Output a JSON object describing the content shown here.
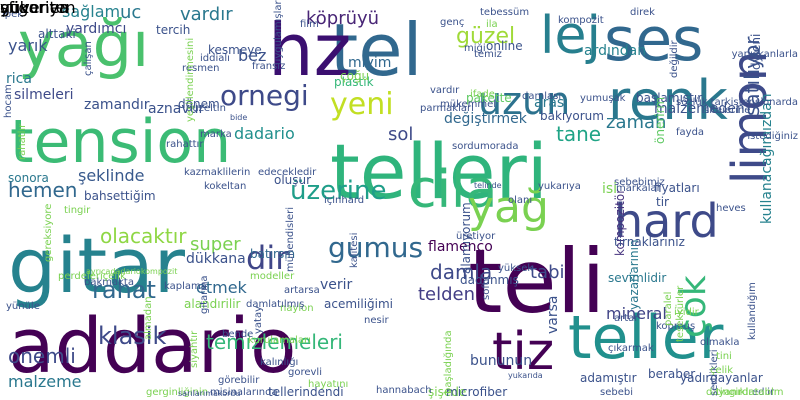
{
  "cloud": {
    "words": [
      {
        "text": "addario",
        "color": "#440154"
      },
      {
        "text": "tension",
        "color": "#3bbb75"
      },
      {
        "text": "teli",
        "color": "#440154"
      },
      {
        "text": "telleri",
        "color": "#2fb47c"
      },
      {
        "text": "tel",
        "color": "#31688e"
      },
      {
        "text": "hz",
        "color": "#3b0f70"
      },
      {
        "text": "gitar",
        "color": "#26828e"
      },
      {
        "text": "yağı",
        "color": "#4ac16d"
      },
      {
        "text": "ses",
        "color": "#31688e"
      },
      {
        "text": "lej",
        "color": "#277f8e"
      },
      {
        "text": "renk",
        "color": "#2a788e"
      },
      {
        "text": "teller",
        "color": "#21908d"
      },
      {
        "text": "cila",
        "color": "#35b779"
      },
      {
        "text": "tiz",
        "color": "#440154"
      },
      {
        "text": "limon",
        "color": "#3e4a89"
      },
      {
        "text": "hard",
        "color": "#3e4a89"
      },
      {
        "text": "yağ",
        "color": "#7ad151"
      },
      {
        "text": "gumus",
        "color": "#31688e"
      },
      {
        "text": "uzun",
        "color": "#2c728e"
      },
      {
        "text": "yeni",
        "color": "#c2df23"
      },
      {
        "text": "çok",
        "color": "#35b779"
      },
      {
        "text": "üzerine",
        "color": "#1f9e89"
      },
      {
        "text": "klasik",
        "color": "#3e4a89"
      },
      {
        "text": "ornegi",
        "color": "#3e4a89"
      },
      {
        "text": "dir",
        "color": "#404688"
      },
      {
        "text": "satılıyor",
        "color": "#3b528b"
      },
      {
        "text": "zaman",
        "color": "#2a788e"
      },
      {
        "text": "temizlemeleri",
        "color": "#35b779"
      },
      {
        "text": "damla",
        "color": "#3e4a89"
      },
      {
        "text": "telden",
        "color": "#433e85"
      },
      {
        "text": "tane",
        "color": "#20a486"
      },
      {
        "text": "olacaktır",
        "color": "#8fd744"
      },
      {
        "text": "rahat",
        "color": "#31688e"
      },
      {
        "text": "hemen",
        "color": "#31688e"
      },
      {
        "text": "tabi",
        "color": "#3e4a89"
      },
      {
        "text": "sol",
        "color": "#3e4a89"
      },
      {
        "text": "güzel",
        "color": "#a0da39"
      },
      {
        "text": "köprüyü",
        "color": "#482576"
      },
      {
        "text": "vardır",
        "color": "#2a788e"
      },
      {
        "text": "uc",
        "color": "#2a788e"
      },
      {
        "text": "bez",
        "color": "#3b528b"
      },
      {
        "text": "yarık",
        "color": "#3b528b"
      },
      {
        "text": "sağlam",
        "color": "#26828e"
      },
      {
        "text": "yardımcı",
        "color": "#3e4a89"
      },
      {
        "text": "ardından",
        "color": "#26828e"
      },
      {
        "text": "kompozitör",
        "color": "#46327e"
      },
      {
        "text": "kullanacağımızdan",
        "color": "#26828e"
      },
      {
        "text": "yazarlarının",
        "color": "#2a788e"
      },
      {
        "text": "mineral",
        "color": "#414487"
      },
      {
        "text": "varsa",
        "color": "#3b528b"
      },
      {
        "text": "bununun",
        "color": "#3b528b"
      },
      {
        "text": "onemli",
        "color": "#3e4a89"
      },
      {
        "text": "malzeme",
        "color": "#2a788e"
      },
      {
        "text": "super",
        "color": "#7ad151"
      },
      {
        "text": "dükkana",
        "color": "#3b528b"
      },
      {
        "text": "etmek",
        "color": "#31688e"
      },
      {
        "text": "flamenco",
        "color": "#440154"
      },
      {
        "text": "değiştirmek",
        "color": "#31688e"
      },
      {
        "text": "malzemeden",
        "color": "#3b528b"
      },
      {
        "text": "dadario",
        "color": "#21908d"
      },
      {
        "text": "zamandır",
        "color": "#3b528b"
      },
      {
        "text": "aznavur",
        "color": "#3b528b"
      },
      {
        "text": "şeklinde",
        "color": "#38598c"
      },
      {
        "text": "oluşur",
        "color": "#3b528b"
      },
      {
        "text": "miyim",
        "color": "#31688e"
      },
      {
        "text": "plastik",
        "color": "#35b779"
      },
      {
        "text": "silmeleri",
        "color": "#3e4a89"
      },
      {
        "text": "rica",
        "color": "#2a788e"
      },
      {
        "text": "sonora",
        "color": "#2a788e"
      },
      {
        "text": "başlamıştır",
        "color": "#3b528b"
      },
      {
        "text": "dadanmış",
        "color": "#3b528b"
      },
      {
        "text": "verir",
        "color": "#3b528b"
      },
      {
        "text": "tirnaklarınız",
        "color": "#3b528b"
      },
      {
        "text": "sevimlidir",
        "color": "#2a788e"
      },
      {
        "text": "alamıyorum",
        "color": "#3b528b"
      },
      {
        "text": "adamıştır",
        "color": "#3b528b"
      },
      {
        "text": "beraber",
        "color": "#3b528b"
      },
      {
        "text": "yadırgayanlar",
        "color": "#3b528b"
      },
      {
        "text": "tellerindendi",
        "color": "#3b528b"
      },
      {
        "text": "bahsettiğim",
        "color": "#3b528b"
      },
      {
        "text": "alandırilir",
        "color": "#7ad151"
      },
      {
        "text": "batırsın",
        "color": "#31688e"
      },
      {
        "text": "online",
        "color": "#3b528b"
      },
      {
        "text": "arası",
        "color": "#2a788e"
      },
      {
        "text": "bakıyorum",
        "color": "#3b528b"
      },
      {
        "text": "pakette",
        "color": "#5ec962"
      },
      {
        "text": "dönem",
        "color": "#3b528b"
      },
      {
        "text": "kesmeye",
        "color": "#3b528b"
      },
      {
        "text": "tercih",
        "color": "#3b528b"
      },
      {
        "text": "alttaki",
        "color": "#3b528b"
      },
      {
        "text": "hocam",
        "color": "#3b528b"
      },
      {
        "text": "çoğu",
        "color": "#7ad151"
      },
      {
        "text": "fransız",
        "color": "#3b528b"
      },
      {
        "text": "resmen",
        "color": "#3b528b"
      },
      {
        "text": "iddialı",
        "color": "#3b528b"
      },
      {
        "text": "kazmaklilerin",
        "color": "#3b528b"
      },
      {
        "text": "edecekledir",
        "color": "#3b528b"
      },
      {
        "text": "sebebimiz",
        "color": "#3b528b"
      },
      {
        "text": "önerirm",
        "color": "#5ec962"
      },
      {
        "text": "fiyatları",
        "color": "#3b528b"
      },
      {
        "text": "tir",
        "color": "#3b528b"
      },
      {
        "text": "isi",
        "color": "#7ad151"
      },
      {
        "text": "markalar",
        "color": "#3b528b"
      },
      {
        "text": "yukarıya",
        "color": "#3b528b"
      },
      {
        "text": "telinde",
        "color": "#3b528b"
      },
      {
        "text": "sordumorada",
        "color": "#3b528b"
      },
      {
        "text": "mükemmel",
        "color": "#3b528b"
      },
      {
        "text": "parmaklari",
        "color": "#3b528b"
      },
      {
        "text": "kaplama",
        "color": "#3b528b"
      },
      {
        "text": "yüksek",
        "color": "#3b528b"
      },
      {
        "text": "artarsa",
        "color": "#3b528b"
      },
      {
        "text": "naylon",
        "color": "#7ad151"
      },
      {
        "text": "acemiliğimi",
        "color": "#3b528b"
      },
      {
        "text": "üretiyor",
        "color": "#3b528b"
      },
      {
        "text": "soft",
        "color": "#3b528b"
      },
      {
        "text": "nesir",
        "color": "#3b528b"
      },
      {
        "text": "çıkarmak",
        "color": "#3b528b"
      },
      {
        "text": "artar",
        "color": "#3b528b"
      },
      {
        "text": "olmakla",
        "color": "#3b528b"
      },
      {
        "text": "gorevli",
        "color": "#3b528b"
      },
      {
        "text": "hayatını",
        "color": "#7ad151"
      },
      {
        "text": "şişede",
        "color": "#7ad151"
      },
      {
        "text": "microfiber",
        "color": "#3b528b"
      },
      {
        "text": "hannabach",
        "color": "#3b528b"
      },
      {
        "text": "kalınlığı",
        "color": "#3b528b"
      },
      {
        "text": "siyahtır",
        "color": "#7ad151"
      },
      {
        "text": "kurulamaları",
        "color": "#7ad151"
      },
      {
        "text": "damlatılmış",
        "color": "#3b528b"
      },
      {
        "text": "modeller",
        "color": "#7ad151"
      },
      {
        "text": "görebilir",
        "color": "#3b528b"
      },
      {
        "text": "yünüle",
        "color": "#3b528b"
      },
      {
        "text": "sebebi",
        "color": "#3b528b"
      },
      {
        "text": "iyidir",
        "color": "#7ad151"
      },
      {
        "text": "kopmuş",
        "color": "#3b528b"
      },
      {
        "text": "ediir",
        "color": "#3b528b"
      },
      {
        "text": "dayanıklı",
        "color": "#7ad151"
      },
      {
        "text": "sertlikleri",
        "color": "#3b528b"
      },
      {
        "text": "tesekkürler",
        "color": "#7ad151"
      },
      {
        "text": "paralel",
        "color": "#7ad151"
      },
      {
        "text": "kullandığım",
        "color": "#3b528b"
      },
      {
        "text": "ipek",
        "color": "#3b528b"
      },
      {
        "text": "film",
        "color": "#3b528b"
      },
      {
        "text": "genç",
        "color": "#3b528b"
      },
      {
        "text": "ila",
        "color": "#7ad151"
      },
      {
        "text": "tebessüm",
        "color": "#3b528b"
      },
      {
        "text": "kompozit",
        "color": "#3b528b"
      },
      {
        "text": "direk",
        "color": "#3b528b"
      },
      {
        "text": "yapışkanlarla",
        "color": "#3b528b"
      },
      {
        "text": "dyleni",
        "color": "#3b528b"
      },
      {
        "text": "değildir",
        "color": "#3b528b"
      },
      {
        "text": "sözlük",
        "color": "#3b528b"
      },
      {
        "text": "siteierine",
        "color": "#3b528b"
      },
      {
        "text": "tarkistensionarda",
        "color": "#3b528b"
      },
      {
        "text": "fayda",
        "color": "#3b528b"
      },
      {
        "text": "istediğiniz",
        "color": "#3b528b"
      },
      {
        "text": "rahatlır",
        "color": "#7ad151"
      },
      {
        "text": "yeşillendirmesini",
        "color": "#7ad151"
      },
      {
        "text": "mühendisleri",
        "color": "#3b528b"
      },
      {
        "text": "kalitesi",
        "color": "#3b528b"
      },
      {
        "text": "içinhard",
        "color": "#3b528b"
      },
      {
        "text": "kokeltan",
        "color": "#3b528b"
      },
      {
        "text": "ayrıcadadariokompozit",
        "color": "#7ad151"
      },
      {
        "text": "gerginliğinin",
        "color": "#7ad151"
      },
      {
        "text": "misinalarında",
        "color": "#3b528b"
      },
      {
        "text": "sarılarımakordu",
        "color": "#3b528b"
      },
      {
        "text": "başladığında",
        "color": "#7ad151"
      },
      {
        "text": "almadan",
        "color": "#7ad151"
      },
      {
        "text": "tini",
        "color": "#7ad151"
      },
      {
        "text": "çelik",
        "color": "#7ad151"
      },
      {
        "text": "tingirdatablm",
        "color": "#7ad151"
      },
      {
        "text": "bakmakta",
        "color": "#3b528b"
      },
      {
        "text": "perdeleriçelik",
        "color": "#7ad151"
      },
      {
        "text": "gereksiyore",
        "color": "#7ad151"
      },
      {
        "text": "gitarına",
        "color": "#3b528b"
      },
      {
        "text": "ifade",
        "color": "#7ad151"
      },
      {
        "text": "damlası",
        "color": "#3b528b"
      },
      {
        "text": "yumuşak",
        "color": "#3b528b"
      },
      {
        "text": "vardır",
        "color": "#3b528b"
      },
      {
        "text": "uygulamışlar",
        "color": "#3b528b"
      },
      {
        "text": "miği",
        "color": "#3b528b"
      },
      {
        "text": "temiz",
        "color": "#3b528b"
      },
      {
        "text": "düzeltin",
        "color": "#3b528b"
      },
      {
        "text": "çalışan",
        "color": "#3b528b"
      },
      {
        "text": "marka",
        "color": "#3b528b"
      },
      {
        "text": "bide",
        "color": "#3b528b"
      },
      {
        "text": "rahattır",
        "color": "#3b528b"
      },
      {
        "text": "yukarıda",
        "color": "#3b528b"
      },
      {
        "text": "yatay",
        "color": "#3b528b"
      },
      {
        "text": "bende",
        "color": "#3b528b"
      },
      {
        "text": "tingir",
        "color": "#7ad151"
      },
      {
        "text": "olanı",
        "color": "#3b528b"
      },
      {
        "text": "heves",
        "color": "#3b528b"
      },
      {
        "text": "güvenen",
        "color": "#3b528b"
      },
      {
        "text": "yukarıya",
        "color": "#3b528b"
      },
      {
        "text": "sfigoriten",
        "color": "#3b528b"
      }
    ]
  }
}
